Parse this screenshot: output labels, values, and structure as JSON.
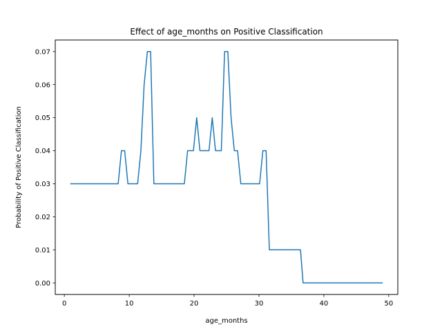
{
  "chart_data": {
    "type": "line",
    "title": "Effect of age_months on Positive Classification",
    "xlabel": "age_months",
    "ylabel": "Probability of Positive Classification",
    "xlim": [
      -1.4,
      51.4
    ],
    "ylim": [
      -0.0035,
      0.0735
    ],
    "xticks": [
      0,
      10,
      20,
      30,
      40,
      50
    ],
    "xtick_labels": [
      "0",
      "10",
      "20",
      "30",
      "40",
      "50"
    ],
    "yticks": [
      0.0,
      0.01,
      0.02,
      0.03,
      0.04,
      0.05,
      0.06,
      0.07
    ],
    "ytick_labels": [
      "0.00",
      "0.01",
      "0.02",
      "0.03",
      "0.04",
      "0.05",
      "0.06",
      "0.07"
    ],
    "grid": false,
    "line_color": "#1f77b4",
    "series": [
      {
        "x": [
          1.0,
          8.3,
          8.8,
          9.3,
          9.8,
          11.3,
          11.8,
          12.3,
          12.8,
          13.3,
          13.8,
          18.5,
          19.0,
          19.9,
          20.4,
          20.9,
          22.3,
          22.8,
          23.3,
          24.2,
          24.7,
          25.2,
          25.7,
          26.2,
          26.7,
          27.2,
          30.1,
          30.6,
          31.1,
          31.6,
          36.4,
          36.8,
          49.0
        ],
        "y": [
          0.03,
          0.03,
          0.04,
          0.04,
          0.03,
          0.03,
          0.04,
          0.06,
          0.07,
          0.07,
          0.03,
          0.03,
          0.04,
          0.04,
          0.05,
          0.04,
          0.04,
          0.05,
          0.04,
          0.04,
          0.07,
          0.07,
          0.05,
          0.04,
          0.04,
          0.03,
          0.03,
          0.04,
          0.04,
          0.01,
          0.01,
          0.0,
          0.0
        ]
      }
    ]
  }
}
